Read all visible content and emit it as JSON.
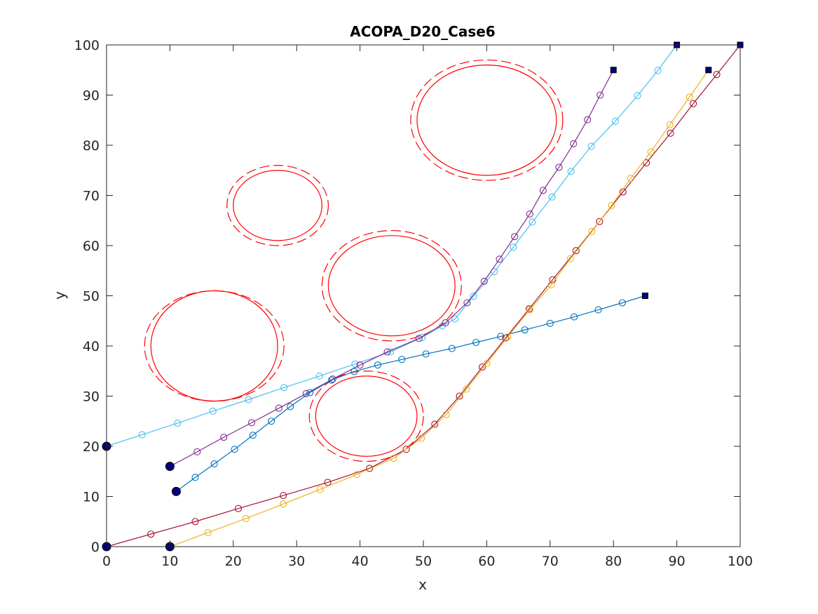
{
  "chart_data": {
    "type": "line",
    "title": "ACOPA_D20_Case6",
    "xlabel": "x",
    "ylabel": "y",
    "xlim": [
      0,
      100
    ],
    "ylim": [
      0,
      100
    ],
    "xticks": [
      0,
      10,
      20,
      30,
      40,
      50,
      60,
      70,
      80,
      90,
      100
    ],
    "yticks": [
      0,
      10,
      20,
      30,
      40,
      50,
      60,
      70,
      80,
      90,
      100
    ],
    "grid": false,
    "obstacles": [
      {
        "cx": 17,
        "cy": 40,
        "rx": 10,
        "ry": 11,
        "rx_outer": 11,
        "ry_outer": 11
      },
      {
        "cx": 27,
        "cy": 68,
        "rx": 7,
        "ry": 7,
        "rx_outer": 8,
        "ry_outer": 8
      },
      {
        "cx": 45,
        "cy": 52,
        "rx": 10,
        "ry": 10,
        "rx_outer": 11,
        "ry_outer": 11
      },
      {
        "cx": 41,
        "cy": 26,
        "rx": 8,
        "ry": 8,
        "rx_outer": 9,
        "ry_outer": 9
      },
      {
        "cx": 60,
        "cy": 85,
        "rx": 11,
        "ry": 11,
        "rx_outer": 12,
        "ry_outer": 12
      }
    ],
    "obstacle_color": "#ff0000",
    "series": [
      {
        "color": "#4DBEEE",
        "points": [
          [
            0,
            20
          ],
          [
            5.6,
            22.3
          ],
          [
            11.2,
            24.6
          ],
          [
            16.8,
            27
          ],
          [
            22.4,
            29.3
          ],
          [
            28,
            31.7
          ],
          [
            33.6,
            34
          ],
          [
            39.2,
            36.4
          ],
          [
            44.8,
            38.8
          ],
          [
            49.8,
            41.7
          ],
          [
            53,
            44
          ],
          [
            55,
            45.4
          ],
          [
            57.9,
            49.9
          ],
          [
            61.2,
            54.8
          ],
          [
            64.2,
            59.7
          ],
          [
            67.2,
            64.7
          ],
          [
            70.3,
            69.7
          ],
          [
            73.3,
            74.8
          ],
          [
            76.5,
            79.8
          ],
          [
            80.3,
            84.8
          ],
          [
            83.8,
            89.9
          ],
          [
            87,
            94.9
          ],
          [
            90,
            100
          ]
        ]
      },
      {
        "color": "#7E2F8E",
        "points": [
          [
            10,
            16
          ],
          [
            14.3,
            18.9
          ],
          [
            18.5,
            21.8
          ],
          [
            22.9,
            24.7
          ],
          [
            27.2,
            27.6
          ],
          [
            31.5,
            30.5
          ],
          [
            35.7,
            33.4
          ],
          [
            40,
            36.2
          ],
          [
            44.3,
            38.8
          ],
          [
            49.3,
            41.5
          ],
          [
            53.5,
            44.6
          ],
          [
            56.9,
            48.6
          ],
          [
            59.6,
            52.9
          ],
          [
            62,
            57.3
          ],
          [
            64.4,
            61.8
          ],
          [
            66.8,
            66.3
          ],
          [
            68.9,
            71
          ],
          [
            71.4,
            75.6
          ],
          [
            73.7,
            80.3
          ],
          [
            75.9,
            85.1
          ],
          [
            77.9,
            90
          ],
          [
            80,
            95
          ]
        ]
      },
      {
        "color": "#0072BD",
        "points": [
          [
            11,
            11
          ],
          [
            14,
            13.8
          ],
          [
            17,
            16.5
          ],
          [
            20.2,
            19.4
          ],
          [
            23.1,
            22.2
          ],
          [
            26,
            25
          ],
          [
            29,
            27.9
          ],
          [
            32.1,
            30.7
          ],
          [
            35.5,
            33.2
          ],
          [
            39.1,
            34.9
          ],
          [
            42.8,
            36.2
          ],
          [
            46.6,
            37.3
          ],
          [
            50.4,
            38.4
          ],
          [
            54.5,
            39.5
          ],
          [
            58.3,
            40.7
          ],
          [
            62.2,
            41.9
          ],
          [
            66,
            43.2
          ],
          [
            70,
            44.5
          ],
          [
            73.8,
            45.8
          ],
          [
            77.6,
            47.2
          ],
          [
            81.4,
            48.6
          ],
          [
            85,
            50
          ]
        ]
      },
      {
        "color": "#A2142F",
        "points": [
          [
            0,
            0
          ],
          [
            7,
            2.5
          ],
          [
            14,
            5
          ],
          [
            20.8,
            7.6
          ],
          [
            27.9,
            10.2
          ],
          [
            34.9,
            12.8
          ],
          [
            41.5,
            15.6
          ],
          [
            47.3,
            19.4
          ],
          [
            51.8,
            24.4
          ],
          [
            55.7,
            30
          ],
          [
            59.3,
            35.8
          ],
          [
            63,
            41.6
          ],
          [
            66.7,
            47.4
          ],
          [
            70.4,
            53.2
          ],
          [
            74.1,
            59
          ],
          [
            77.8,
            64.8
          ],
          [
            81.5,
            70.7
          ],
          [
            85.2,
            76.5
          ],
          [
            89,
            82.4
          ],
          [
            92.6,
            88.3
          ],
          [
            96.3,
            94.1
          ],
          [
            100,
            100
          ]
        ]
      },
      {
        "color": "#EDB120",
        "points": [
          [
            10,
            0
          ],
          [
            16,
            2.8
          ],
          [
            22,
            5.6
          ],
          [
            27.9,
            8.5
          ],
          [
            33.7,
            11.4
          ],
          [
            39.5,
            14.4
          ],
          [
            45.3,
            17.6
          ],
          [
            49.7,
            21.6
          ],
          [
            53.6,
            26.3
          ],
          [
            56.8,
            31.4
          ],
          [
            60,
            36.5
          ],
          [
            63.3,
            41.8
          ],
          [
            66.8,
            47.2
          ],
          [
            70.2,
            52.2
          ],
          [
            73.2,
            57.4
          ],
          [
            76.6,
            62.8
          ],
          [
            79.7,
            68
          ],
          [
            82.7,
            73.4
          ],
          [
            85.9,
            78.7
          ],
          [
            88.9,
            84.1
          ],
          [
            92,
            89.6
          ],
          [
            95,
            95
          ]
        ]
      }
    ],
    "start_marker_color": "#000080",
    "end_marker_color": "#000080"
  }
}
